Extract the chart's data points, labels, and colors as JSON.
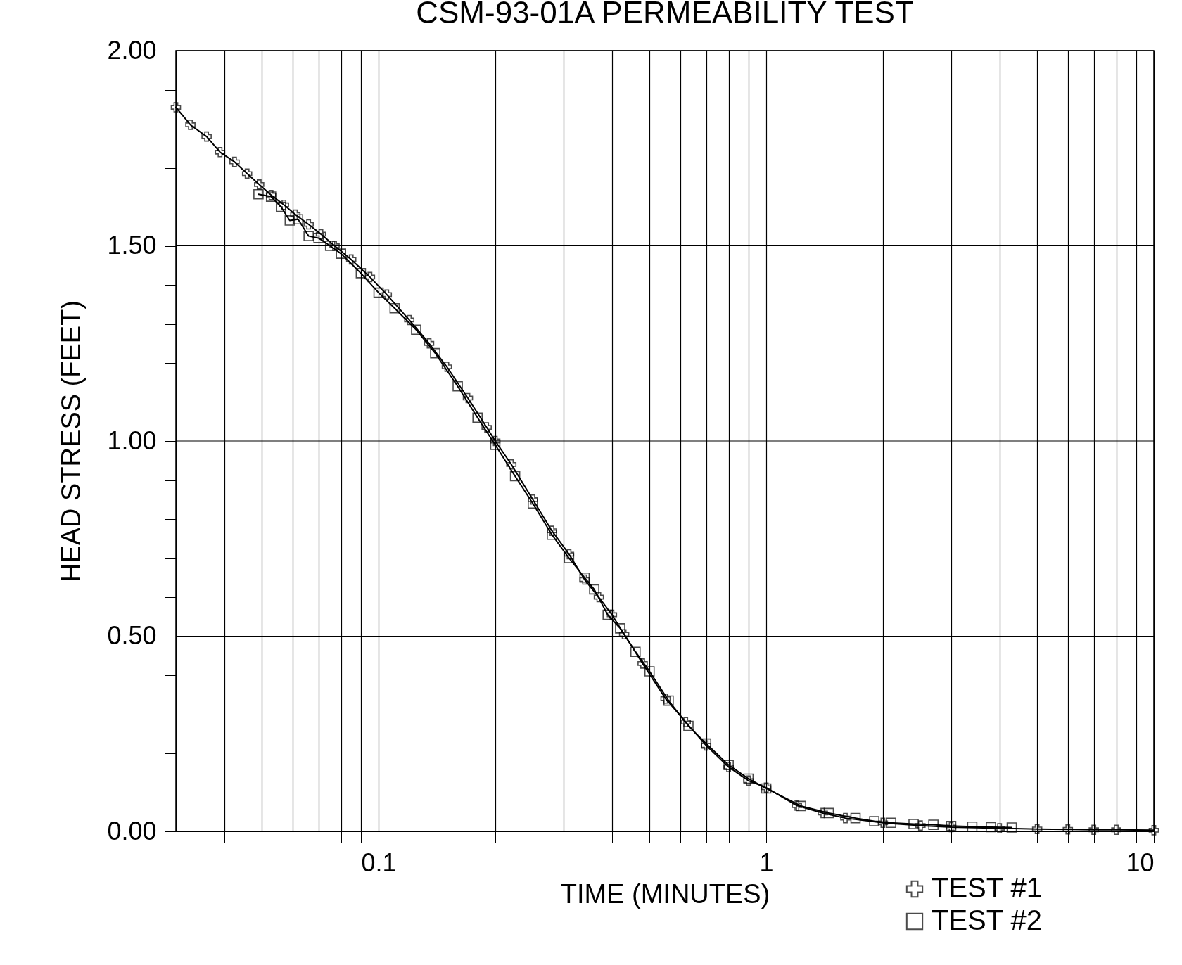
{
  "chart_data": {
    "type": "line",
    "title": "CSM-93-01A PERMEABILITY TEST",
    "xlabel": "TIME (MINUTES)",
    "ylabel": "HEAD STRESS (FEET)",
    "log": "x",
    "grid": true,
    "legend": "bottom right",
    "line_style": "solid",
    "xlim": [
      0.03,
      10
    ],
    "ylim": [
      0,
      2
    ],
    "xticks": [
      {
        "value": 0.04,
        "label": null
      },
      {
        "value": 0.05,
        "label": null
      },
      {
        "value": 0.06,
        "label": null
      },
      {
        "value": 0.07,
        "label": null
      },
      {
        "value": 0.08,
        "label": null
      },
      {
        "value": 0.09,
        "label": null
      },
      0.1,
      {
        "value": 0.2,
        "label": null
      },
      {
        "value": 0.3,
        "label": null
      },
      {
        "value": 0.4,
        "label": null
      },
      {
        "value": 0.5,
        "label": null
      },
      {
        "value": 0.6,
        "label": null
      },
      {
        "value": 0.7,
        "label": null
      },
      {
        "value": 0.8,
        "label": null
      },
      {
        "value": 0.9,
        "label": null
      },
      1,
      {
        "value": 2,
        "label": null
      },
      {
        "value": 3,
        "label": null
      },
      {
        "value": 4,
        "label": null
      },
      {
        "value": 5,
        "label": null
      },
      {
        "value": 6,
        "label": null
      },
      {
        "value": 7,
        "label": null
      },
      {
        "value": 8,
        "label": null
      },
      {
        "value": 9,
        "label": null
      },
      10
    ],
    "yticks": [
      {
        "value": 0,
        "label": "0.00"
      },
      {
        "value": 0.1,
        "label": null
      },
      {
        "value": 0.2,
        "label": null
      },
      {
        "value": 0.3,
        "label": null
      },
      {
        "value": 0.4,
        "label": null
      },
      {
        "value": 0.5,
        "label": "0.50"
      },
      {
        "value": 0.6,
        "label": null
      },
      {
        "value": 0.7,
        "label": null
      },
      {
        "value": 0.8,
        "label": null
      },
      {
        "value": 0.9,
        "label": null
      },
      {
        "value": 1,
        "label": "1.00"
      },
      {
        "value": 1.1,
        "label": null
      },
      {
        "value": 1.2,
        "label": null
      },
      {
        "value": 1.3,
        "label": null
      },
      {
        "value": 1.4,
        "label": null
      },
      {
        "value": 1.5,
        "label": "1.50"
      },
      {
        "value": 1.6,
        "label": null
      },
      {
        "value": 1.7,
        "label": null
      },
      {
        "value": 1.8,
        "label": null
      },
      {
        "value": 1.9,
        "label": null
      },
      {
        "value": 2,
        "label": "2.00"
      }
    ],
    "series": [
      {
        "name": "TEST #1",
        "color": "#000000",
        "marker": "cross",
        "x": [
          0.03,
          0.0327,
          0.036,
          0.039,
          0.0425,
          0.0458,
          0.0492,
          0.0528,
          0.057,
          0.061,
          0.066,
          0.071,
          0.077,
          0.085,
          0.095,
          0.105,
          0.12,
          0.135,
          0.15,
          0.17,
          0.19,
          0.2,
          0.22,
          0.25,
          0.28,
          0.31,
          0.34,
          0.37,
          0.4,
          0.43,
          0.48,
          0.55,
          0.62,
          0.7,
          0.8,
          0.9,
          1.0,
          1.2,
          1.4,
          1.6,
          2.0,
          2.5,
          3,
          4,
          5,
          6,
          7,
          8,
          10
        ],
        "values": [
          1.855,
          1.81,
          1.78,
          1.74,
          1.715,
          1.685,
          1.657,
          1.63,
          1.605,
          1.58,
          1.555,
          1.53,
          1.5,
          1.465,
          1.42,
          1.375,
          1.31,
          1.25,
          1.19,
          1.11,
          1.035,
          1.0,
          0.94,
          0.85,
          0.77,
          0.71,
          0.645,
          0.6,
          0.555,
          0.505,
          0.43,
          0.34,
          0.28,
          0.22,
          0.165,
          0.13,
          0.112,
          0.066,
          0.047,
          0.034,
          0.022,
          0.015,
          0.011,
          0.008,
          0.006,
          0.005,
          0.004,
          0.004,
          0.003
        ]
      },
      {
        "name": "TEST #2",
        "color": "#000000",
        "marker": "square",
        "x": [
          0.049,
          0.0528,
          0.056,
          0.059,
          0.062,
          0.066,
          0.07,
          0.075,
          0.08,
          0.09,
          0.1,
          0.11,
          0.125,
          0.14,
          0.16,
          0.18,
          0.2,
          0.225,
          0.25,
          0.28,
          0.31,
          0.34,
          0.36,
          0.39,
          0.42,
          0.46,
          0.5,
          0.56,
          0.63,
          0.7,
          0.8,
          0.9,
          1.0,
          1.23,
          1.45,
          1.7,
          1.9,
          2.1,
          2.4,
          2.7,
          3.0,
          3.4,
          3.8,
          4.3
        ],
        "values": [
          1.632,
          1.626,
          1.6,
          1.565,
          1.568,
          1.525,
          1.52,
          1.5,
          1.48,
          1.43,
          1.38,
          1.34,
          1.285,
          1.225,
          1.14,
          1.06,
          0.99,
          0.91,
          0.84,
          0.76,
          0.7,
          0.65,
          0.62,
          0.555,
          0.52,
          0.46,
          0.41,
          0.335,
          0.27,
          0.225,
          0.17,
          0.135,
          0.11,
          0.065,
          0.047,
          0.034,
          0.026,
          0.022,
          0.019,
          0.017,
          0.014,
          0.012,
          0.011,
          0.01
        ]
      }
    ]
  }
}
